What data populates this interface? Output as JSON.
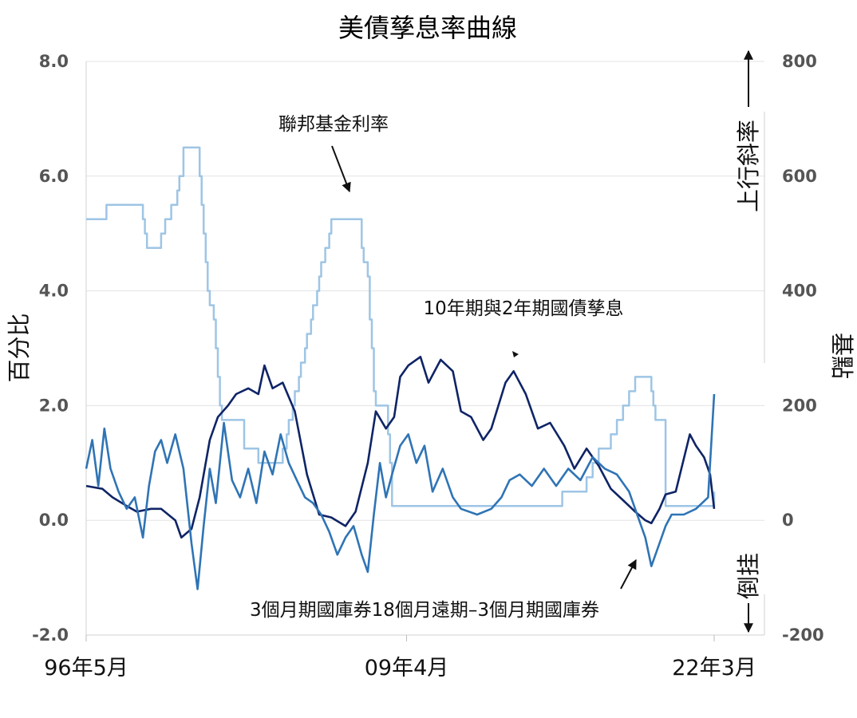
{
  "chart_data": {
    "type": "line",
    "title": "美債孳息率曲線",
    "ylabel_left": "百分比",
    "ylabel_right": "基點",
    "yticks_left": [
      "8.0",
      "6.0",
      "4.0",
      "2.0",
      "0.0",
      "-2.0"
    ],
    "yticks_right": [
      "800",
      "600",
      "400",
      "200",
      "0",
      "-200"
    ],
    "ylim_left": [
      -2,
      8
    ],
    "ylim_right": [
      -200,
      800
    ],
    "xticks": [
      "96年5月",
      "09年4月",
      "22年3月"
    ],
    "xlim": [
      "1996-05",
      "2022-03"
    ],
    "grid": true,
    "annotations": {
      "upward_slope": "上行斜率",
      "inversion": "倒挂",
      "fed_funds": "聯邦基金利率",
      "spread_10y2y": "10年期與2年期國債孳息",
      "near_term_forward": "3個月期國庫券18個月遠期–3個月期國庫券"
    },
    "colors": {
      "fed_funds": "#9ec5e5",
      "spread_10y2y": "#0f2466",
      "near_term_forward": "#2f74b5"
    },
    "series": [
      {
        "name": "聯邦基金利率",
        "axis": "left",
        "step": true,
        "points": [
          [
            "1996-05",
            5.25
          ],
          [
            "1997-03",
            5.5
          ],
          [
            "1998-09",
            5.25
          ],
          [
            "1998-10",
            5.0
          ],
          [
            "1998-11",
            4.75
          ],
          [
            "1999-06",
            5.0
          ],
          [
            "1999-08",
            5.25
          ],
          [
            "1999-11",
            5.5
          ],
          [
            "2000-02",
            5.75
          ],
          [
            "2000-03",
            6.0
          ],
          [
            "2000-05",
            6.5
          ],
          [
            "2001-01",
            6.0
          ],
          [
            "2001-02",
            5.5
          ],
          [
            "2001-03",
            5.0
          ],
          [
            "2001-04",
            4.5
          ],
          [
            "2001-05",
            4.0
          ],
          [
            "2001-06",
            3.75
          ],
          [
            "2001-08",
            3.5
          ],
          [
            "2001-09",
            3.0
          ],
          [
            "2001-10",
            2.5
          ],
          [
            "2001-11",
            2.0
          ],
          [
            "2001-12",
            1.75
          ],
          [
            "2002-11",
            1.25
          ],
          [
            "2003-06",
            1.0
          ],
          [
            "2004-06",
            1.25
          ],
          [
            "2004-08",
            1.5
          ],
          [
            "2004-09",
            1.75
          ],
          [
            "2004-11",
            2.0
          ],
          [
            "2004-12",
            2.25
          ],
          [
            "2005-02",
            2.5
          ],
          [
            "2005-03",
            2.75
          ],
          [
            "2005-05",
            3.0
          ],
          [
            "2005-06",
            3.25
          ],
          [
            "2005-08",
            3.5
          ],
          [
            "2005-09",
            3.75
          ],
          [
            "2005-11",
            4.0
          ],
          [
            "2005-12",
            4.25
          ],
          [
            "2006-01",
            4.5
          ],
          [
            "2006-03",
            4.75
          ],
          [
            "2006-05",
            5.0
          ],
          [
            "2006-06",
            5.25
          ],
          [
            "2007-09",
            4.75
          ],
          [
            "2007-10",
            4.5
          ],
          [
            "2007-12",
            4.25
          ],
          [
            "2008-01",
            3.5
          ],
          [
            "2008-02",
            3.0
          ],
          [
            "2008-03",
            2.25
          ],
          [
            "2008-04",
            2.0
          ],
          [
            "2008-10",
            1.5
          ],
          [
            "2008-11",
            1.0
          ],
          [
            "2008-12",
            0.25
          ],
          [
            "2015-12",
            0.5
          ],
          [
            "2016-12",
            0.75
          ],
          [
            "2017-03",
            1.0
          ],
          [
            "2017-06",
            1.25
          ],
          [
            "2017-12",
            1.5
          ],
          [
            "2018-03",
            1.75
          ],
          [
            "2018-06",
            2.0
          ],
          [
            "2018-09",
            2.25
          ],
          [
            "2018-12",
            2.5
          ],
          [
            "2019-08",
            2.25
          ],
          [
            "2019-09",
            2.0
          ],
          [
            "2019-10",
            1.75
          ],
          [
            "2020-03",
            0.25
          ],
          [
            "2022-03",
            0.5
          ]
        ]
      },
      {
        "name": "10年期與2年期國債孳息",
        "axis": "right",
        "points": [
          [
            "1996-05",
            60
          ],
          [
            "1997-01",
            55
          ],
          [
            "1997-06",
            40
          ],
          [
            "1998-01",
            25
          ],
          [
            "1998-06",
            15
          ],
          [
            "1999-01",
            20
          ],
          [
            "1999-06",
            20
          ],
          [
            "2000-01",
            0
          ],
          [
            "2000-04",
            -30
          ],
          [
            "2000-09",
            -15
          ],
          [
            "2001-01",
            40
          ],
          [
            "2001-06",
            140
          ],
          [
            "2001-10",
            180
          ],
          [
            "2002-03",
            200
          ],
          [
            "2002-07",
            220
          ],
          [
            "2003-01",
            230
          ],
          [
            "2003-06",
            220
          ],
          [
            "2003-09",
            270
          ],
          [
            "2004-01",
            230
          ],
          [
            "2004-06",
            240
          ],
          [
            "2004-12",
            190
          ],
          [
            "2005-06",
            80
          ],
          [
            "2005-12",
            10
          ],
          [
            "2006-06",
            5
          ],
          [
            "2007-01",
            -10
          ],
          [
            "2007-06",
            15
          ],
          [
            "2007-12",
            100
          ],
          [
            "2008-04",
            190
          ],
          [
            "2008-09",
            160
          ],
          [
            "2009-01",
            180
          ],
          [
            "2009-04",
            250
          ],
          [
            "2009-08",
            270
          ],
          [
            "2010-02",
            285
          ],
          [
            "2010-06",
            240
          ],
          [
            "2010-12",
            280
          ],
          [
            "2011-06",
            260
          ],
          [
            "2011-10",
            190
          ],
          [
            "2012-03",
            180
          ],
          [
            "2012-09",
            140
          ],
          [
            "2013-01",
            160
          ],
          [
            "2013-08",
            240
          ],
          [
            "2013-12",
            260
          ],
          [
            "2014-06",
            220
          ],
          [
            "2014-12",
            160
          ],
          [
            "2015-06",
            170
          ],
          [
            "2016-01",
            130
          ],
          [
            "2016-06",
            90
          ],
          [
            "2016-12",
            125
          ],
          [
            "2017-06",
            95
          ],
          [
            "2017-12",
            55
          ],
          [
            "2018-06",
            35
          ],
          [
            "2018-12",
            15
          ],
          [
            "2019-05",
            0
          ],
          [
            "2019-08",
            -5
          ],
          [
            "2019-12",
            20
          ],
          [
            "2020-03",
            45
          ],
          [
            "2020-08",
            50
          ],
          [
            "2021-03",
            150
          ],
          [
            "2021-06",
            130
          ],
          [
            "2021-10",
            110
          ],
          [
            "2022-01",
            80
          ],
          [
            "2022-03",
            20
          ]
        ]
      },
      {
        "name": "3個月期國庫券18個月遠期–3個月期國庫券",
        "axis": "left",
        "points": [
          [
            "1996-05",
            0.9
          ],
          [
            "1996-08",
            1.4
          ],
          [
            "1996-11",
            0.6
          ],
          [
            "1997-02",
            1.6
          ],
          [
            "1997-05",
            0.9
          ],
          [
            "1997-09",
            0.5
          ],
          [
            "1998-01",
            0.2
          ],
          [
            "1998-05",
            0.4
          ],
          [
            "1998-09",
            -0.3
          ],
          [
            "1998-12",
            0.6
          ],
          [
            "1999-03",
            1.2
          ],
          [
            "1999-06",
            1.4
          ],
          [
            "1999-09",
            1.0
          ],
          [
            "2000-01",
            1.5
          ],
          [
            "2000-05",
            0.9
          ],
          [
            "2000-09",
            -0.4
          ],
          [
            "2000-12",
            -1.2
          ],
          [
            "2001-03",
            -0.1
          ],
          [
            "2001-06",
            0.9
          ],
          [
            "2001-09",
            0.3
          ],
          [
            "2002-01",
            1.7
          ],
          [
            "2002-05",
            0.7
          ],
          [
            "2002-09",
            0.4
          ],
          [
            "2003-01",
            0.9
          ],
          [
            "2003-05",
            0.3
          ],
          [
            "2003-09",
            1.2
          ],
          [
            "2004-01",
            0.8
          ],
          [
            "2004-05",
            1.5
          ],
          [
            "2004-09",
            1.0
          ],
          [
            "2005-01",
            0.7
          ],
          [
            "2005-05",
            0.4
          ],
          [
            "2005-09",
            0.3
          ],
          [
            "2006-01",
            0.1
          ],
          [
            "2006-05",
            -0.2
          ],
          [
            "2006-09",
            -0.6
          ],
          [
            "2007-01",
            -0.3
          ],
          [
            "2007-05",
            -0.1
          ],
          [
            "2007-09",
            -0.6
          ],
          [
            "2007-12",
            -0.9
          ],
          [
            "2008-03",
            0.1
          ],
          [
            "2008-06",
            1.0
          ],
          [
            "2008-09",
            0.4
          ],
          [
            "2008-12",
            0.8
          ],
          [
            "2009-04",
            1.3
          ],
          [
            "2009-08",
            1.5
          ],
          [
            "2009-12",
            1.0
          ],
          [
            "2010-04",
            1.3
          ],
          [
            "2010-08",
            0.5
          ],
          [
            "2011-01",
            0.9
          ],
          [
            "2011-06",
            0.4
          ],
          [
            "2011-10",
            0.2
          ],
          [
            "2012-06",
            0.1
          ],
          [
            "2013-01",
            0.2
          ],
          [
            "2013-06",
            0.4
          ],
          [
            "2013-10",
            0.7
          ],
          [
            "2014-03",
            0.8
          ],
          [
            "2014-09",
            0.6
          ],
          [
            "2015-03",
            0.9
          ],
          [
            "2015-09",
            0.6
          ],
          [
            "2016-03",
            0.9
          ],
          [
            "2016-09",
            0.7
          ],
          [
            "2017-03",
            1.1
          ],
          [
            "2017-09",
            0.9
          ],
          [
            "2018-03",
            0.8
          ],
          [
            "2018-09",
            0.5
          ],
          [
            "2019-01",
            0.1
          ],
          [
            "2019-05",
            -0.3
          ],
          [
            "2019-08",
            -0.8
          ],
          [
            "2019-12",
            -0.4
          ],
          [
            "2020-03",
            -0.1
          ],
          [
            "2020-06",
            0.1
          ],
          [
            "2020-12",
            0.1
          ],
          [
            "2021-06",
            0.2
          ],
          [
            "2021-12",
            0.4
          ],
          [
            "2022-03",
            2.2
          ]
        ]
      }
    ]
  }
}
